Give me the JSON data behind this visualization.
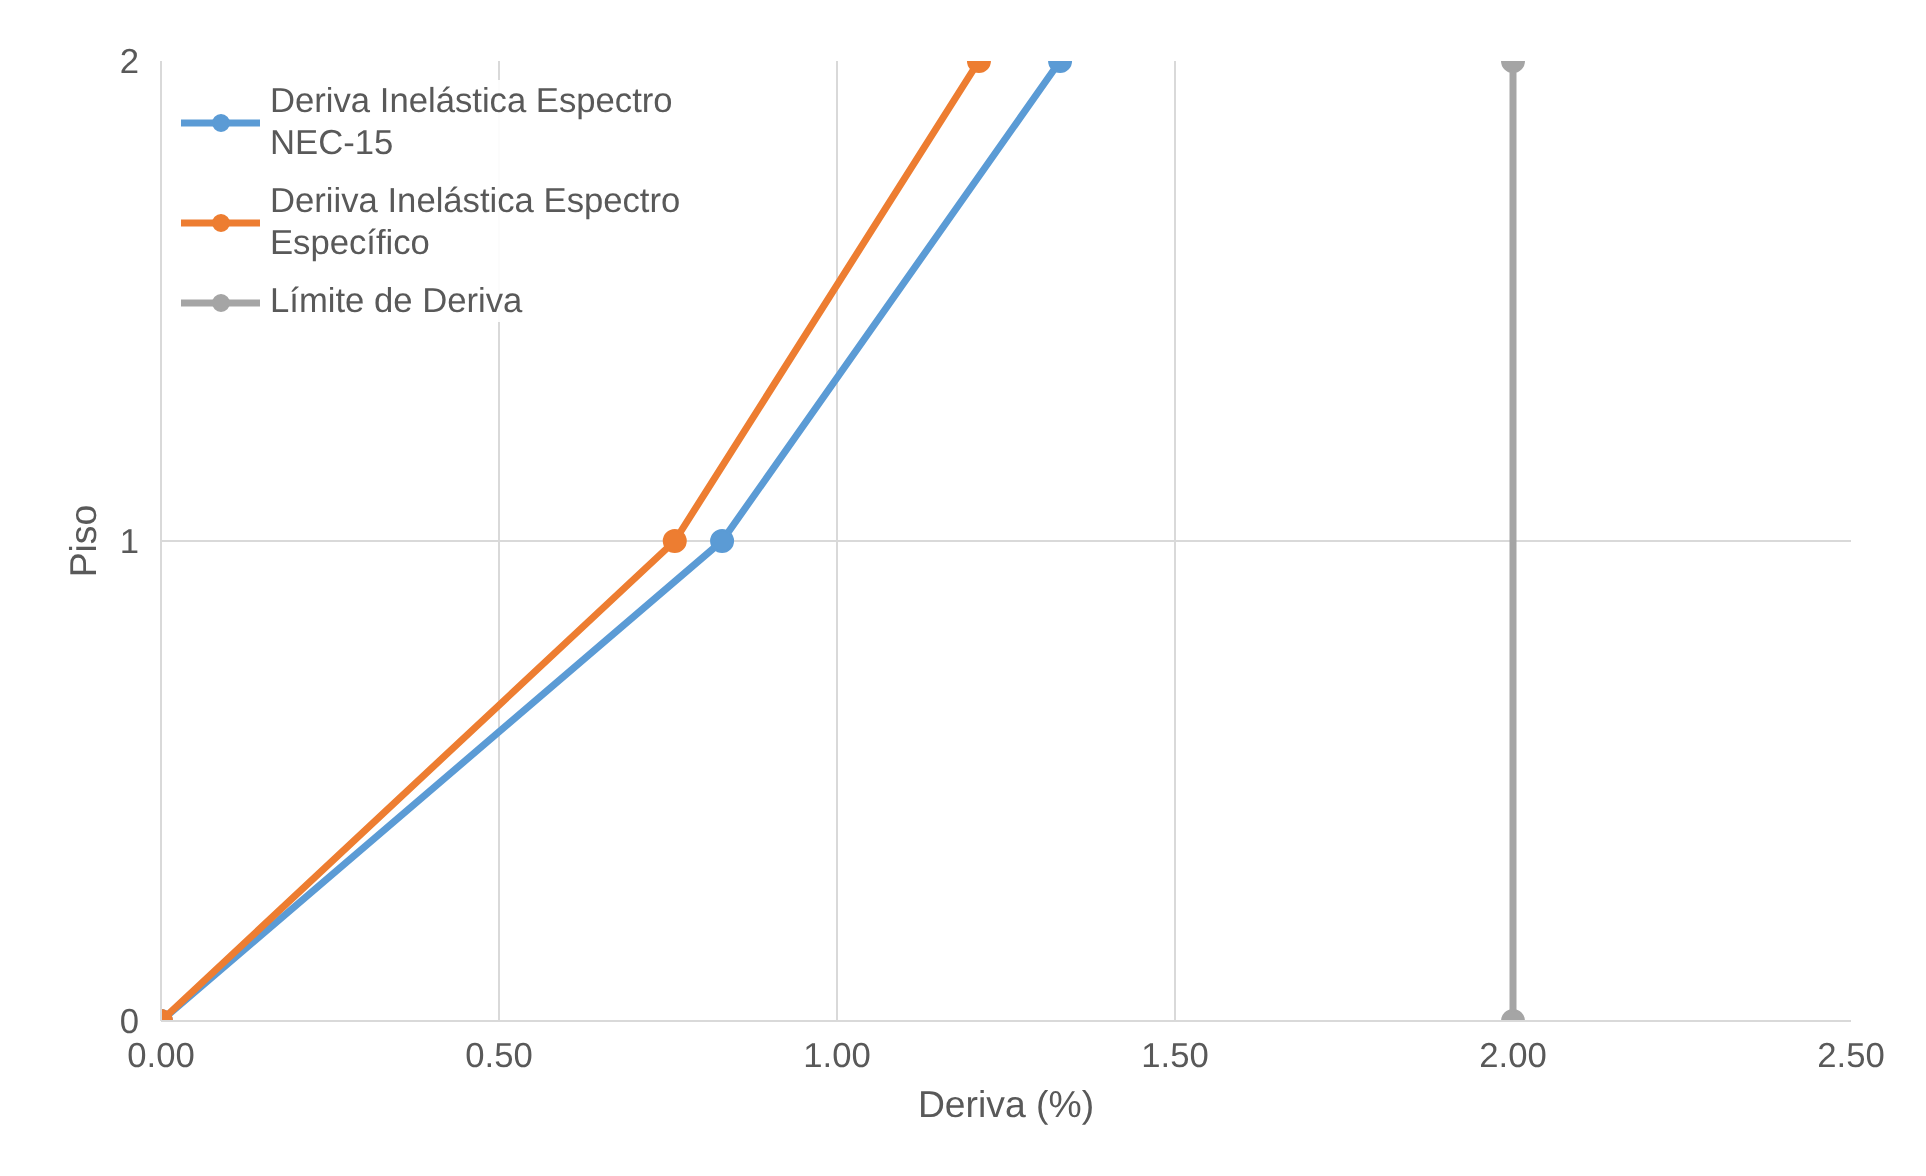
{
  "chart_data": {
    "type": "line",
    "xlabel": "Deriva (%)",
    "ylabel": "Piso",
    "series": [
      {
        "name": "Deriva Inelástica Espectro NEC-15",
        "color": "#5b9bd5",
        "x": [
          0,
          0.83,
          1.33
        ],
        "values": [
          0,
          1,
          2
        ]
      },
      {
        "name": "Deriiva Inelástica Espectro Específico",
        "color": "#ed7d31",
        "x": [
          0,
          0.76,
          1.21
        ],
        "values": [
          0,
          1,
          2
        ]
      },
      {
        "name": "Límite de Deriva",
        "color": "#a5a5a5",
        "x": [
          2,
          2
        ],
        "values": [
          0,
          2
        ]
      }
    ],
    "xlim": [
      0,
      2.5
    ],
    "ylim": [
      0,
      2
    ],
    "xticks": [
      {
        "value": 0,
        "label": "0.00"
      },
      {
        "value": 0.5,
        "label": "0.50"
      },
      {
        "value": 1,
        "label": "1.00"
      },
      {
        "value": 1.5,
        "label": "1.50"
      },
      {
        "value": 2,
        "label": "2.00"
      },
      {
        "value": 2.5,
        "label": "2.50"
      }
    ],
    "yticks": [
      0,
      1,
      2
    ],
    "grid": true,
    "legend": "top left",
    "marker": "circle",
    "line_style": "solid"
  }
}
